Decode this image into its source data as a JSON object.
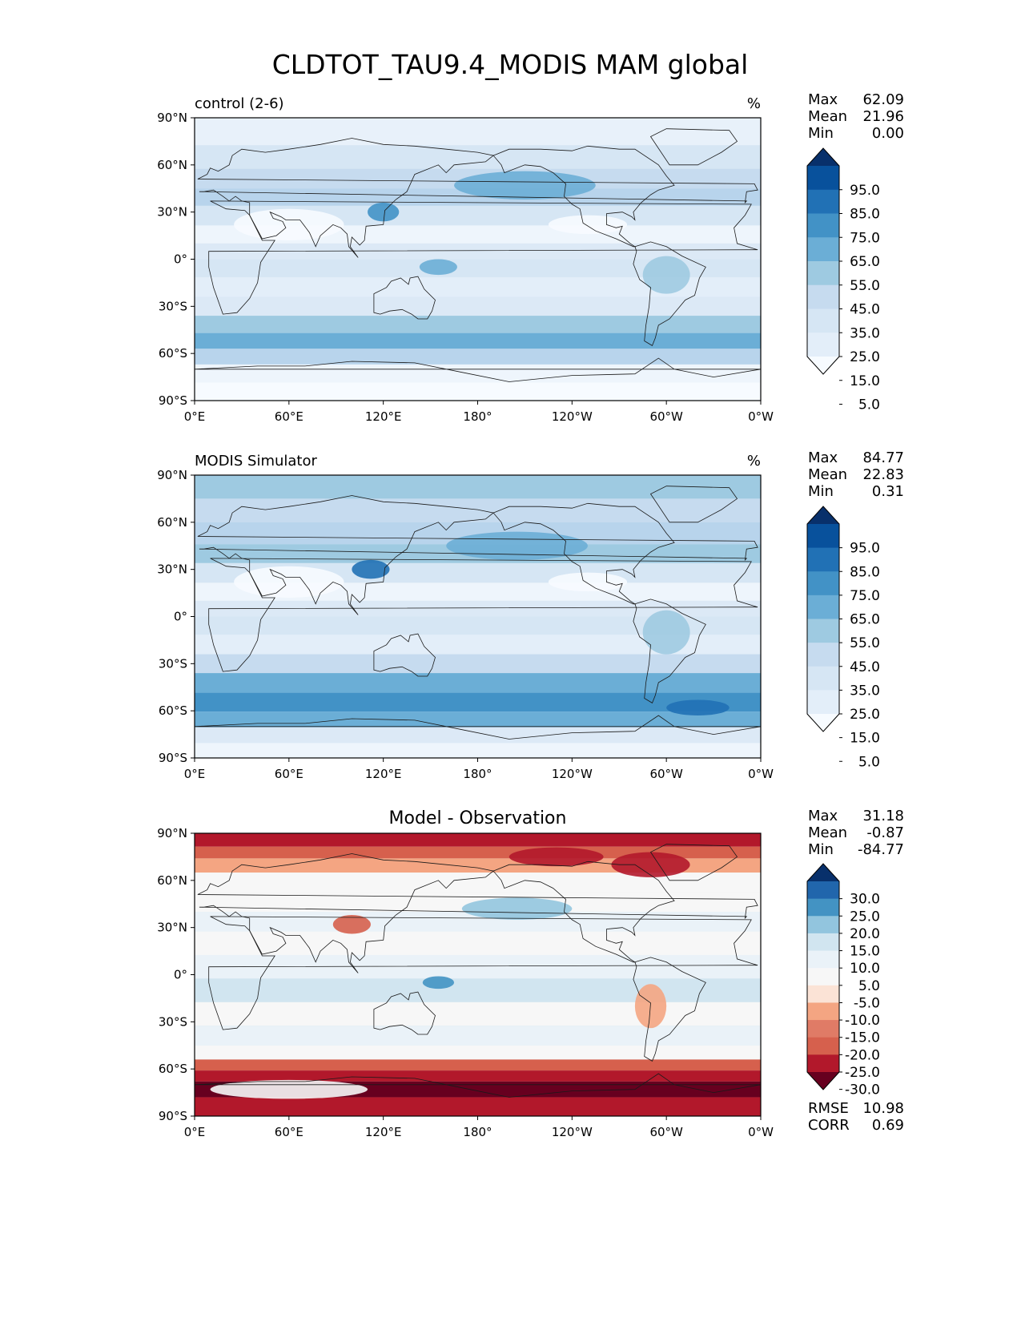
{
  "figure": {
    "title": "CLDTOT_TAU9.4_MODIS MAM global"
  },
  "chart_data": [
    {
      "type": "heatmap",
      "panel_label": "control (2-6)",
      "units": "%",
      "stats": [
        {
          "label": "Max",
          "value": "62.09"
        },
        {
          "label": "Mean",
          "value": "21.96"
        },
        {
          "label": "Min",
          "value": "0.00"
        }
      ],
      "colorbar": {
        "ticks": [
          "95.0",
          "85.0",
          "75.0",
          "65.0",
          "55.0",
          "45.0",
          "35.0",
          "25.0",
          "15.0",
          "5.0"
        ],
        "colors": [
          "#08306b",
          "#08519c",
          "#2171b5",
          "#4292c6",
          "#6baed6",
          "#9ecae1",
          "#c6dbef",
          "#d6e6f4",
          "#e3eef9",
          "#f7fbff"
        ],
        "extend": "both"
      },
      "x_ticks": [
        "0°E",
        "60°E",
        "120°E",
        "180°",
        "120°W",
        "60°W",
        "0°W"
      ],
      "y_ticks": [
        "90°N",
        "60°N",
        "30°N",
        "0°",
        "30°S",
        "60°S",
        "90°S"
      ],
      "xlim": [
        0,
        360
      ],
      "ylim": [
        -90,
        90
      ],
      "bands": [
        {
          "lat": 80,
          "color": "#e8f1fa"
        },
        {
          "lat": 65,
          "color": "#d6e6f4"
        },
        {
          "lat": 50,
          "color": "#c6dbef"
        },
        {
          "lat": 40,
          "color": "#b8d4ec"
        },
        {
          "lat": 28,
          "color": "#d6e6f4"
        },
        {
          "lat": 15,
          "color": "#eef5fc"
        },
        {
          "lat": 5,
          "color": "#dce9f6"
        },
        {
          "lat": -5,
          "color": "#d6e6f4"
        },
        {
          "lat": -18,
          "color": "#e3eef9"
        },
        {
          "lat": -30,
          "color": "#dce9f6"
        },
        {
          "lat": -42,
          "color": "#9ecae1"
        },
        {
          "lat": -52,
          "color": "#6baed6"
        },
        {
          "lat": -62,
          "color": "#b8d4ec"
        },
        {
          "lat": -72,
          "color": "#eef5fc"
        },
        {
          "lat": -85,
          "color": "#f7fbff"
        }
      ],
      "blobs": [
        {
          "lon": 210,
          "lat": 47,
          "rlon": 45,
          "rlat": 9,
          "color": "#6baed6"
        },
        {
          "lon": 120,
          "lat": 30,
          "rlon": 10,
          "rlat": 6,
          "color": "#4292c6"
        },
        {
          "lon": 155,
          "lat": -5,
          "rlon": 12,
          "rlat": 5,
          "color": "#6baed6"
        },
        {
          "lon": 60,
          "lat": 22,
          "rlon": 35,
          "rlat": 10,
          "color": "#f7fbff"
        },
        {
          "lon": 250,
          "lat": 22,
          "rlon": 25,
          "rlat": 6,
          "color": "#f7fbff"
        },
        {
          "lon": 300,
          "lat": -10,
          "rlon": 15,
          "rlat": 12,
          "color": "#9ecae1"
        }
      ]
    },
    {
      "type": "heatmap",
      "panel_label": "MODIS Simulator",
      "units": "%",
      "stats": [
        {
          "label": "Max",
          "value": "84.77"
        },
        {
          "label": "Mean",
          "value": "22.83"
        },
        {
          "label": "Min",
          "value": "0.31"
        }
      ],
      "colorbar": {
        "ticks": [
          "95.0",
          "85.0",
          "75.0",
          "65.0",
          "55.0",
          "45.0",
          "35.0",
          "25.0",
          "15.0",
          "5.0"
        ],
        "colors": [
          "#08306b",
          "#08519c",
          "#2171b5",
          "#4292c6",
          "#6baed6",
          "#9ecae1",
          "#c6dbef",
          "#d6e6f4",
          "#e3eef9",
          "#f7fbff"
        ],
        "extend": "both"
      },
      "x_ticks": [
        "0°E",
        "60°E",
        "120°E",
        "180°",
        "120°W",
        "60°W",
        "0°W"
      ],
      "y_ticks": [
        "90°N",
        "60°N",
        "30°N",
        "0°",
        "30°S",
        "60°S",
        "90°S"
      ],
      "xlim": [
        0,
        360
      ],
      "ylim": [
        -90,
        90
      ],
      "bands": [
        {
          "lat": 82,
          "color": "#9ecae1"
        },
        {
          "lat": 68,
          "color": "#c6dbef"
        },
        {
          "lat": 52,
          "color": "#b8d4ec"
        },
        {
          "lat": 40,
          "color": "#9ecae1"
        },
        {
          "lat": 28,
          "color": "#d6e6f4"
        },
        {
          "lat": 15,
          "color": "#eef5fc"
        },
        {
          "lat": 5,
          "color": "#dce9f6"
        },
        {
          "lat": -5,
          "color": "#d6e6f4"
        },
        {
          "lat": -18,
          "color": "#e3eef9"
        },
        {
          "lat": -30,
          "color": "#c6dbef"
        },
        {
          "lat": -42,
          "color": "#6baed6"
        },
        {
          "lat": -55,
          "color": "#4292c6"
        },
        {
          "lat": -66,
          "color": "#6baed6"
        },
        {
          "lat": -75,
          "color": "#dce9f6"
        },
        {
          "lat": -86,
          "color": "#eef5fc"
        }
      ],
      "blobs": [
        {
          "lon": 205,
          "lat": 45,
          "rlon": 45,
          "rlat": 9,
          "color": "#6baed6"
        },
        {
          "lon": 112,
          "lat": 30,
          "rlon": 12,
          "rlat": 6,
          "color": "#2171b5"
        },
        {
          "lon": 60,
          "lat": 22,
          "rlon": 35,
          "rlat": 10,
          "color": "#f7fbff"
        },
        {
          "lon": 250,
          "lat": 22,
          "rlon": 25,
          "rlat": 6,
          "color": "#f7fbff"
        },
        {
          "lon": 300,
          "lat": -10,
          "rlon": 15,
          "rlat": 14,
          "color": "#9ecae1"
        },
        {
          "lon": 320,
          "lat": -58,
          "rlon": 20,
          "rlat": 5,
          "color": "#2171b5"
        }
      ]
    },
    {
      "type": "heatmap",
      "panel_title": "Model - Observation",
      "stats": [
        {
          "label": "Max",
          "value": "31.18"
        },
        {
          "label": "Mean",
          "value": "-0.87"
        },
        {
          "label": "Min",
          "value": "-84.77"
        }
      ],
      "extra_stats": [
        {
          "label": "RMSE",
          "value": "10.98"
        },
        {
          "label": "CORR",
          "value": "0.69"
        }
      ],
      "colorbar": {
        "ticks": [
          "30.0",
          "25.0",
          "20.0",
          "15.0",
          "10.0",
          "5.0",
          "-5.0",
          "-10.0",
          "-15.0",
          "-20.0",
          "-25.0",
          "-30.0"
        ],
        "colors": [
          "#08306b",
          "#2166ac",
          "#4393c3",
          "#92c5de",
          "#d1e5f0",
          "#eaf2f8",
          "#f7f7f7",
          "#fbe3d6",
          "#f4a582",
          "#e07b66",
          "#d6604d",
          "#b2182b",
          "#67001f"
        ],
        "extend": "both"
      },
      "x_ticks": [
        "0°E",
        "60°E",
        "120°E",
        "180°",
        "120°W",
        "60°W",
        "0°W"
      ],
      "y_ticks": [
        "90°N",
        "60°N",
        "30°N",
        "0°",
        "30°S",
        "60°S",
        "90°S"
      ],
      "xlim": [
        0,
        360
      ],
      "ylim": [
        -90,
        90
      ],
      "bands": [
        {
          "lat": 85,
          "color": "#b2182b"
        },
        {
          "lat": 78,
          "color": "#d6604d"
        },
        {
          "lat": 70,
          "color": "#f4a582"
        },
        {
          "lat": 60,
          "color": "#f7f7f7"
        },
        {
          "lat": 45,
          "color": "#f7f7f7"
        },
        {
          "lat": 35,
          "color": "#eaf2f8"
        },
        {
          "lat": 20,
          "color": "#f7f7f7"
        },
        {
          "lat": 5,
          "color": "#eaf2f8"
        },
        {
          "lat": -10,
          "color": "#d1e5f0"
        },
        {
          "lat": -25,
          "color": "#f7f7f7"
        },
        {
          "lat": -40,
          "color": "#eaf2f8"
        },
        {
          "lat": -50,
          "color": "#f7f7f7"
        },
        {
          "lat": -58,
          "color": "#d6604d"
        },
        {
          "lat": -64,
          "color": "#b2182b"
        },
        {
          "lat": -72,
          "color": "#67001f"
        },
        {
          "lat": -84,
          "color": "#b2182b"
        }
      ],
      "blobs": [
        {
          "lon": 205,
          "lat": 42,
          "rlon": 35,
          "rlat": 7,
          "color": "#92c5de"
        },
        {
          "lon": 100,
          "lat": 32,
          "rlon": 12,
          "rlat": 6,
          "color": "#d6604d"
        },
        {
          "lon": 290,
          "lat": -20,
          "rlon": 10,
          "rlat": 14,
          "color": "#f4a582"
        },
        {
          "lon": 155,
          "lat": -5,
          "rlon": 10,
          "rlat": 4,
          "color": "#4393c3"
        },
        {
          "lon": 60,
          "lat": -73,
          "rlon": 50,
          "rlat": 6,
          "color": "#f7f7f7"
        },
        {
          "lon": 290,
          "lat": 70,
          "rlon": 25,
          "rlat": 8,
          "color": "#b2182b"
        },
        {
          "lon": 230,
          "lat": 75,
          "rlon": 30,
          "rlat": 6,
          "color": "#b2182b"
        }
      ]
    }
  ]
}
